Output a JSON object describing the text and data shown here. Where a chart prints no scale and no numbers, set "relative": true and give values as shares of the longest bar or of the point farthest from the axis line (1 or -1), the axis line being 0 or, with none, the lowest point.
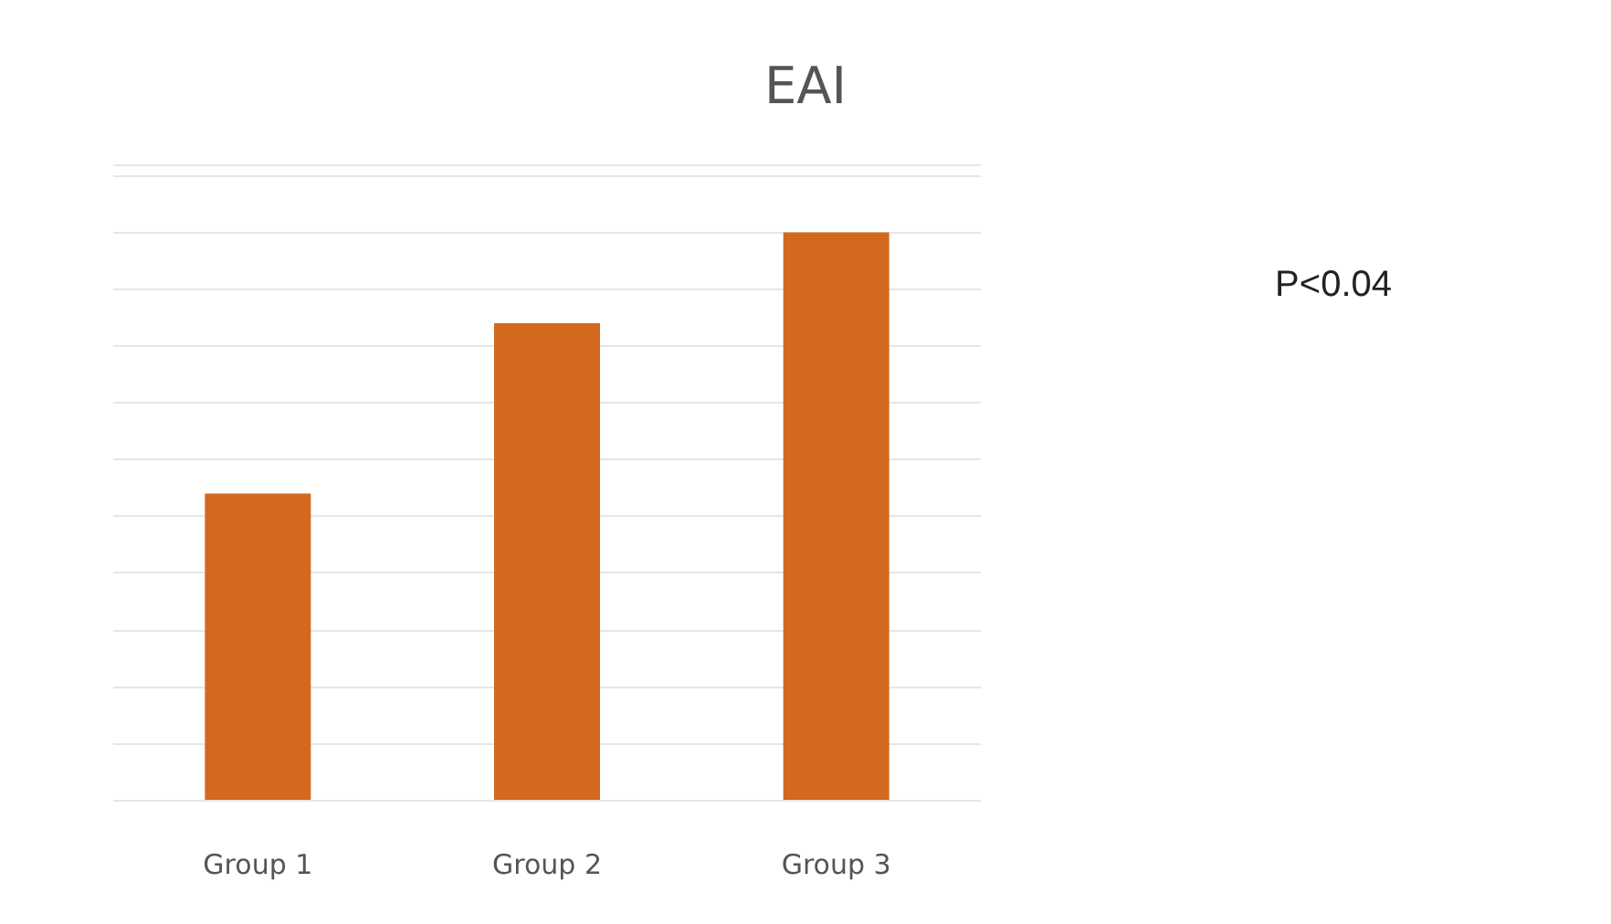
{
  "chart_data": {
    "type": "bar",
    "title": "EAI",
    "categories": [
      "Group 1",
      "Group 2",
      "Group 3"
    ],
    "values": [
      0.54,
      0.84,
      1
    ],
    "color": "#d2691e",
    "relative": true,
    "grid": "y",
    "annotations": [
      "P<0.04"
    ]
  }
}
